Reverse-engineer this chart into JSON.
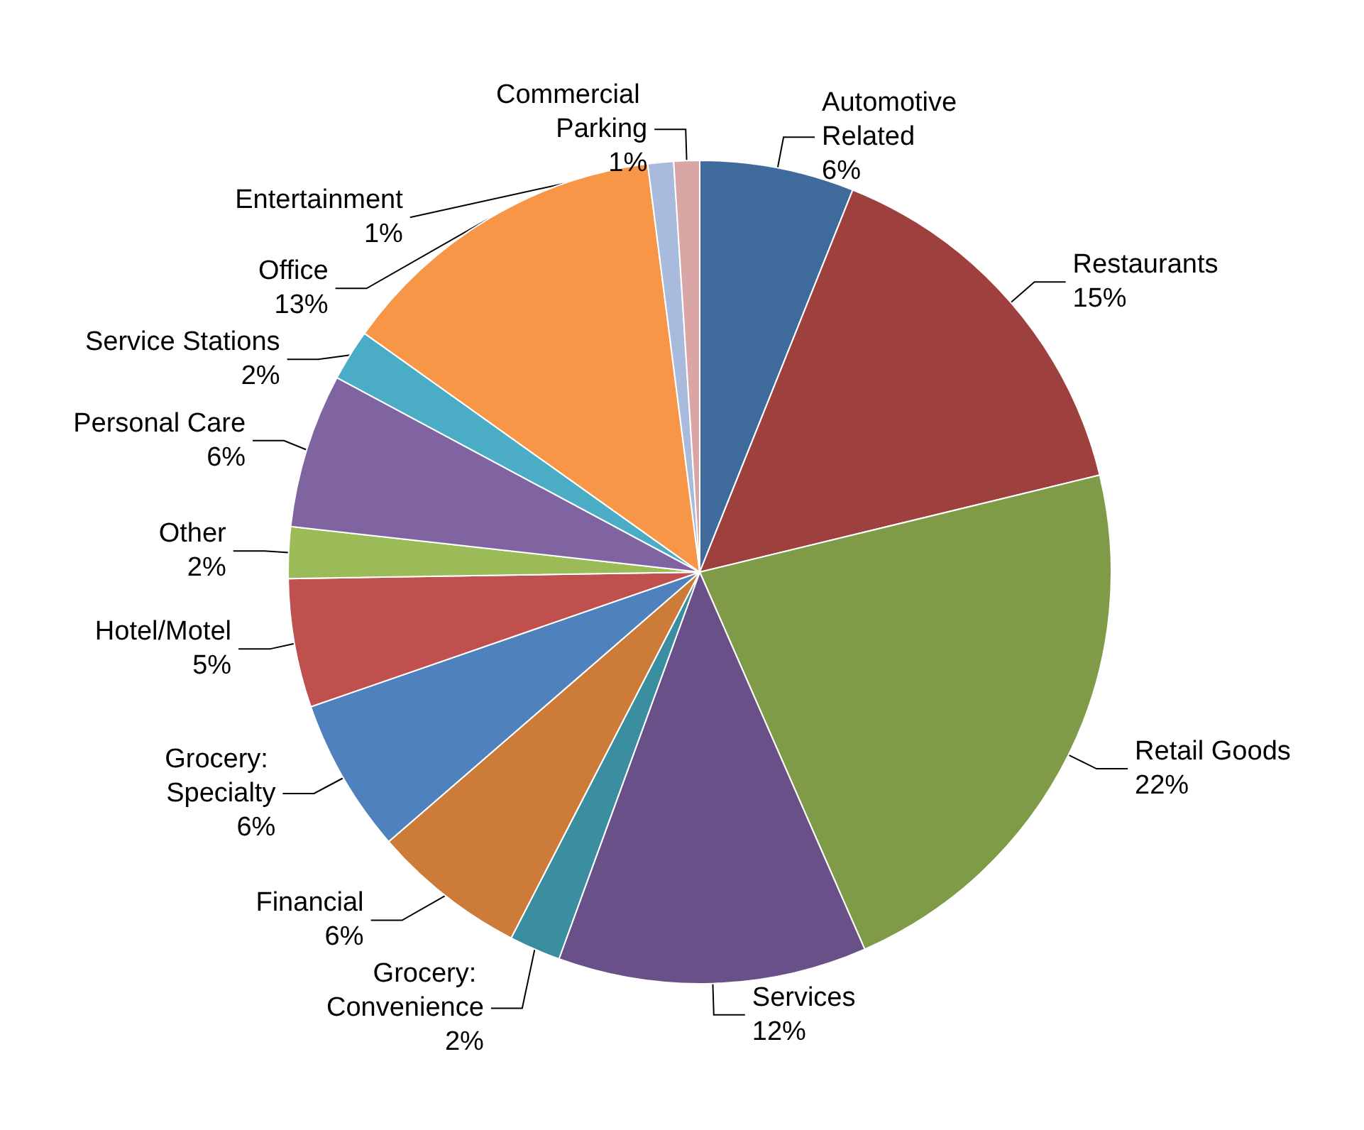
{
  "chart_data": {
    "type": "pie",
    "categories": [
      "Automotive Related",
      "Restaurants",
      "Retail Goods",
      "Services",
      "Grocery: Convenience",
      "Financial",
      "Grocery: Specialty",
      "Hotel/Motel",
      "Other",
      "Personal Care",
      "Service Stations",
      "Office",
      "Entertainment",
      "Commercial Parking"
    ],
    "values": [
      6,
      15,
      22,
      12,
      2,
      6,
      6,
      5,
      2,
      6,
      2,
      13,
      1,
      1
    ],
    "value_labels": [
      "6%",
      "15%",
      "22%",
      "12%",
      "2%",
      "6%",
      "6%",
      "5%",
      "2%",
      "6%",
      "2%",
      "13%",
      "1%",
      "1%"
    ],
    "colors": [
      "#3f6a9c",
      "#9e413e",
      "#7f9b48",
      "#6a5088",
      "#3b8da0",
      "#cc7b38",
      "#4f81bd",
      "#c0504d",
      "#9bbb59",
      "#8064a2",
      "#4bacc6",
      "#f79646",
      "#a9bbdd",
      "#d9a5a5"
    ],
    "legend": false
  }
}
